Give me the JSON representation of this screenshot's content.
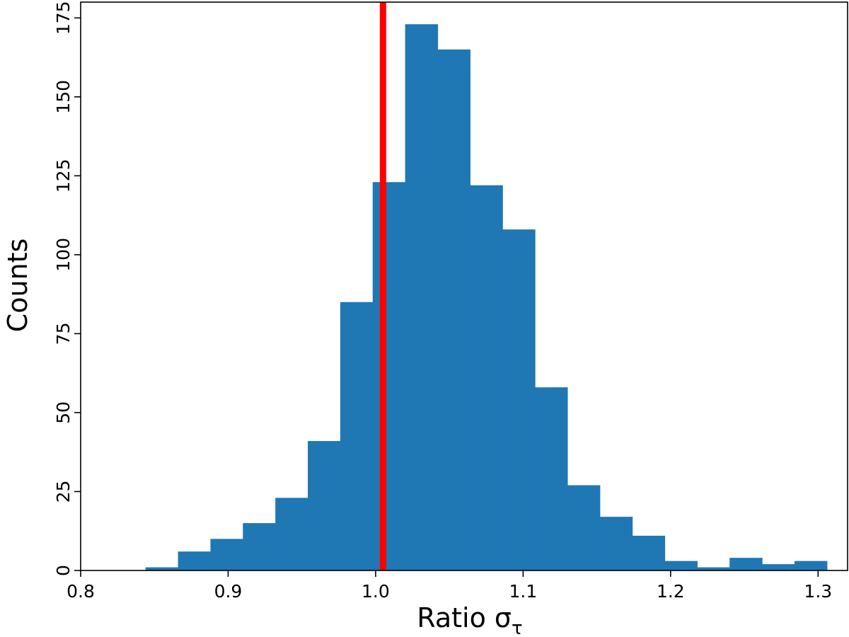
{
  "chart_data": {
    "type": "bar",
    "title": "",
    "xlabel": "Ratio σ",
    "xlabel_subscript": "τ",
    "ylabel": "Counts",
    "xlim": [
      0.8,
      1.32
    ],
    "ylim": [
      0,
      180
    ],
    "xticks": [
      0.8,
      0.9,
      1.0,
      1.1,
      1.2,
      1.3
    ],
    "xtick_labels": [
      "0.8",
      "0.9",
      "1.0",
      "1.1",
      "1.2",
      "1.3"
    ],
    "yticks": [
      0,
      25,
      50,
      75,
      100,
      125,
      150,
      175
    ],
    "ytick_labels": [
      "0",
      "25",
      "50",
      "75",
      "100",
      "125",
      "150",
      "175"
    ],
    "bin_edges": [
      0.844,
      0.866,
      0.888,
      0.91,
      0.932,
      0.954,
      0.976,
      0.998,
      1.02,
      1.042,
      1.064,
      1.086,
      1.108,
      1.13,
      1.152,
      1.174,
      1.196,
      1.218,
      1.24,
      1.262,
      1.284,
      1.306
    ],
    "counts": [
      1,
      6,
      10,
      15,
      23,
      41,
      85,
      123,
      173,
      165,
      122,
      108,
      58,
      27,
      17,
      11,
      3,
      1,
      4,
      2,
      3
    ],
    "bar_color": "#1f77b4",
    "reference_line": {
      "x": 1.005,
      "y_top": 180,
      "color": "#ff0000"
    },
    "grid": false,
    "legend": "none"
  }
}
